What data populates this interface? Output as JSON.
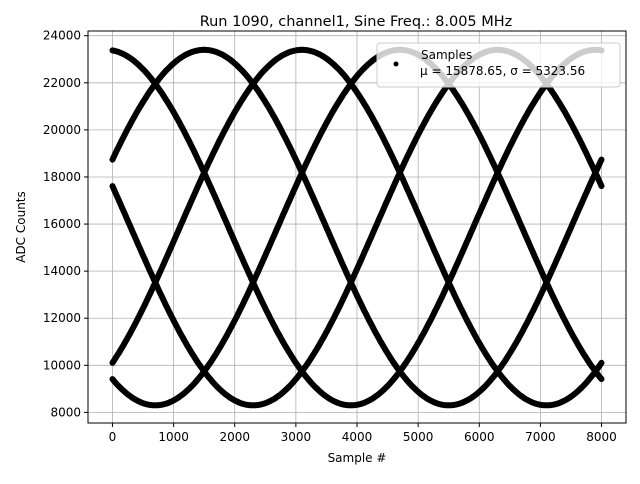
{
  "chart_data": {
    "type": "scatter",
    "title": "Run 1090, channel1, Sine Freq.: 8.005 MHz",
    "xlabel": "Sample #",
    "ylabel": "ADC Counts",
    "xlim": [
      -400,
      8400
    ],
    "ylim": [
      7550,
      24200
    ],
    "xticks": [
      0,
      1000,
      2000,
      3000,
      4000,
      5000,
      6000,
      7000,
      8000
    ],
    "yticks": [
      8000,
      10000,
      12000,
      14000,
      16000,
      18000,
      20000,
      22000,
      24000
    ],
    "grid": true,
    "legend": {
      "placement": "top-right",
      "label": "Samples",
      "stats": "μ = 15878.65, σ = 5323.56"
    },
    "series_model": {
      "description": "5 aliased strands of one sampled sine",
      "center": 15850,
      "amplitude": 7550,
      "strand_period_samples": 8000,
      "n_samples": 8000,
      "strand_peak_sample": [
        -100,
        1500,
        3100,
        4700,
        6300
      ]
    },
    "color": "#000000"
  }
}
